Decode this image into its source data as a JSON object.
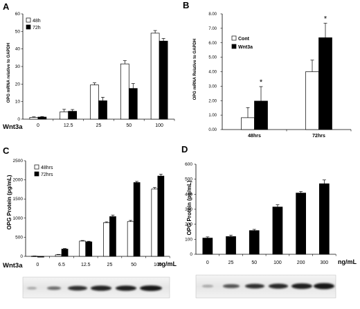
{
  "chart_data": [
    {
      "panel": "A",
      "type": "bar",
      "categories": [
        "0",
        "12.5",
        "25",
        "50",
        "100"
      ],
      "xlabel": "Wnt3a",
      "ylabel": "OPG mRNA relative to GAPDH",
      "ylim": [
        0,
        60
      ],
      "yticks": [
        "0",
        "10",
        "20",
        "30",
        "40",
        "50",
        "60"
      ],
      "series": [
        {
          "name": "48h",
          "values": [
            1.0,
            4.2,
            19.5,
            31.5,
            49.0
          ],
          "errors": [
            0.3,
            1.4,
            1.2,
            1.8,
            1.5
          ]
        },
        {
          "name": "72h",
          "values": [
            1.2,
            4.5,
            10.5,
            17.5,
            44.5
          ],
          "errors": [
            0.3,
            1.0,
            2.0,
            2.8,
            1.5
          ]
        }
      ],
      "legend": "top-left",
      "grid": false
    },
    {
      "panel": "B",
      "type": "bar",
      "categories": [
        "48hrs",
        "72hrs"
      ],
      "ylabel": "OPG mRNA Relative to GAPDH",
      "ylim": [
        0,
        8
      ],
      "yticks": [
        "0.00",
        "1.00",
        "2.00",
        "3.00",
        "4.00",
        "5.00",
        "6.00",
        "7.00",
        "8.00"
      ],
      "series": [
        {
          "name": "Cont",
          "values": [
            0.82,
            4.0
          ],
          "errors": [
            0.7,
            0.8
          ]
        },
        {
          "name": "Wnt3a",
          "values": [
            1.97,
            6.35
          ],
          "errors": [
            1.0,
            1.0
          ]
        }
      ],
      "annotations": [
        "*",
        "*"
      ],
      "legend": "top-left",
      "grid": false
    },
    {
      "panel": "C",
      "type": "bar",
      "categories": [
        "0",
        "6.5",
        "12.5",
        "25",
        "50",
        "100"
      ],
      "xlabel": "Wnt3a",
      "x_unit": "ng/mL",
      "ylabel": "OPG Protein (pg/mL)",
      "ylim": [
        0,
        2500
      ],
      "yticks": [
        "0",
        "500",
        "1000",
        "1500",
        "2000",
        "2500"
      ],
      "series": [
        {
          "name": "48hrs",
          "values": [
            5,
            40,
            400,
            880,
            910,
            1760
          ],
          "errors": [
            5,
            10,
            15,
            25,
            30,
            40
          ]
        },
        {
          "name": "72hrs",
          "values": [
            -20,
            190,
            380,
            1040,
            1930,
            2100
          ],
          "errors": [
            10,
            15,
            15,
            40,
            30,
            50
          ]
        }
      ],
      "legend": "top-left",
      "grid": false
    },
    {
      "panel": "D",
      "type": "bar",
      "categories": [
        "0",
        "25",
        "50",
        "100",
        "200",
        "300"
      ],
      "x_unit": "ng/mL",
      "ylabel": "OPG Protein (pg/mL)",
      "ylim": [
        0,
        600
      ],
      "yticks": [
        "0",
        "100",
        "200",
        "300",
        "400",
        "500",
        "600"
      ],
      "series": [
        {
          "values": [
            108,
            118,
            158,
            315,
            408,
            470
          ],
          "errors": [
            8,
            9,
            8,
            15,
            10,
            25
          ]
        }
      ],
      "grid": false
    }
  ]
}
